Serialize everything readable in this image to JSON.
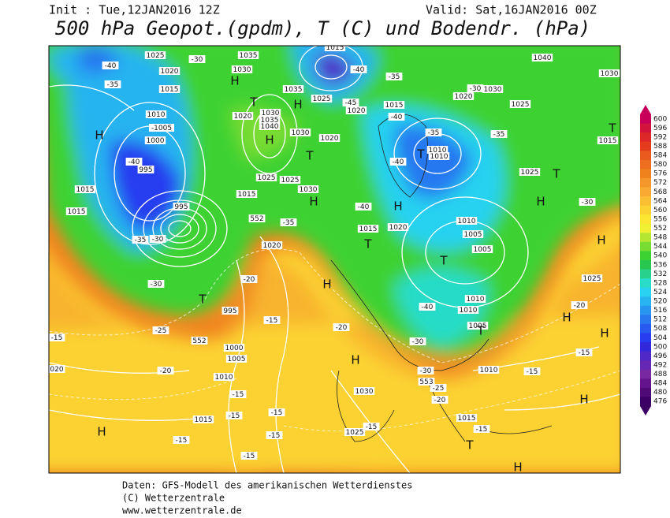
{
  "header": {
    "init": "Init : Tue,12JAN2016 12Z",
    "valid": "Valid: Sat,16JAN2016 00Z",
    "title": "500 hPa Geopot.(gpdm), T (C) und Bodendr. (hPa)"
  },
  "footer": [
    "Daten: GFS-Modell des amerikanischen Wetterdienstes",
    "(C) Wetterzentrale",
    "www.wetterzentrale.de"
  ],
  "colorbar": {
    "values": [
      600,
      596,
      592,
      588,
      584,
      580,
      576,
      572,
      568,
      564,
      560,
      556,
      552,
      548,
      544,
      540,
      536,
      532,
      528,
      524,
      520,
      516,
      512,
      508,
      504,
      500,
      496,
      492,
      488,
      484,
      480,
      476
    ],
    "colors": [
      "#c8005a",
      "#d2143c",
      "#dc2828",
      "#e63c1e",
      "#e85a1e",
      "#ec6e1e",
      "#f0821e",
      "#f4962a",
      "#f8aa32",
      "#fcbe32",
      "#fcd232",
      "#fce632",
      "#f0f032",
      "#b4e632",
      "#78dc32",
      "#3cd232",
      "#28c850",
      "#28d28c",
      "#28dcc8",
      "#28d2f0",
      "#28b4f0",
      "#2896f0",
      "#2878f0",
      "#285af0",
      "#283cf0",
      "#3228dc",
      "#5028c8",
      "#6428b4",
      "#7828a0",
      "#64148c",
      "#500a78",
      "#3c0064"
    ]
  },
  "map_labels": [
    "1025",
    "1035",
    "1015",
    "1040",
    "1030",
    "-40",
    "-30",
    "1020",
    "1030",
    "-40",
    "-35",
    "H",
    "-35",
    "1015",
    "1035",
    "1025",
    "1030",
    "-30",
    "1020",
    "1015",
    "1025",
    "T",
    "H",
    "-45",
    "1020",
    "1010",
    "1020",
    "1030",
    "1035",
    "1040",
    "-40",
    "-1005",
    "H",
    "H",
    "1030",
    "1020",
    "-35",
    "-35",
    "T",
    "1015",
    "1000",
    "1010",
    "1010",
    "T",
    "T",
    "-40",
    "995",
    "-40",
    "1025",
    "1025",
    "1025",
    "T",
    "1015",
    "1030",
    "1015",
    "H",
    "-40",
    "H",
    "H",
    "-30",
    "995",
    "1015",
    "552",
    "-35",
    "1010",
    "1015",
    "1020",
    "-35",
    "-30",
    "1005",
    "H",
    "1020",
    "T",
    "1005",
    "T",
    "1025",
    "-20",
    "-30",
    "H",
    "T",
    "1010",
    "-20",
    "995",
    "-15",
    "-40",
    "1010",
    "H",
    "-25",
    "-20",
    "1005",
    "552",
    "1000",
    "-30",
    "-15",
    "H",
    "T",
    "-15",
    "1005",
    "H",
    "020",
    "-20",
    "1010",
    "-30",
    "1010",
    "-15",
    "553",
    "-25",
    "1030",
    "-15",
    "-20",
    "H",
    "1015",
    "-15",
    "-15",
    "1015",
    "H",
    "-15",
    "-15",
    "1025",
    "-15",
    "-15",
    "T",
    "-15",
    "H"
  ]
}
